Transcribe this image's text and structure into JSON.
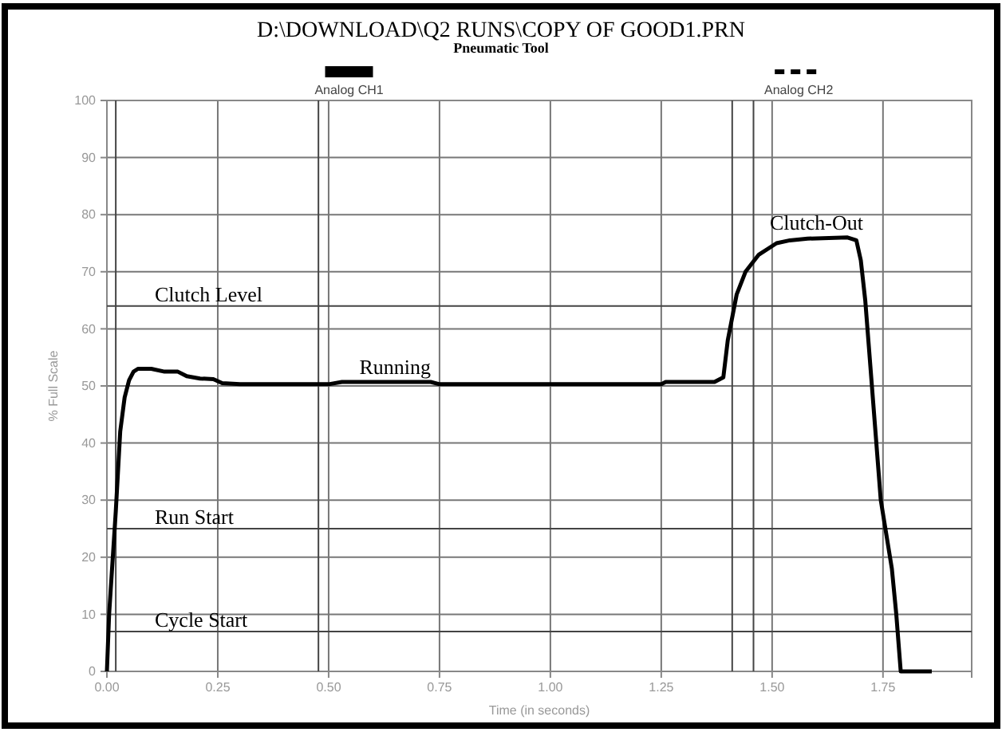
{
  "chart_data": {
    "type": "line",
    "title": "D:\\DOWNLOAD\\Q2 RUNS\\COPY OF GOOD1.PRN",
    "subtitle": "Pneumatic Tool",
    "xlabel": "Time (in seconds)",
    "ylabel": "% Full Scale",
    "xlim": [
      0,
      1.95
    ],
    "ylim": [
      0,
      100
    ],
    "xticks": [
      {
        "value": 0,
        "label": "0.00"
      },
      {
        "value": 0.25,
        "label": "0.25"
      },
      {
        "value": 0.5,
        "label": "0.50"
      },
      {
        "value": 0.75,
        "label": "0.75"
      },
      {
        "value": 1,
        "label": "1.00"
      },
      {
        "value": 1.25,
        "label": "1.25"
      },
      {
        "value": 1.5,
        "label": "1.50"
      },
      {
        "value": 1.75,
        "label": "1.75"
      }
    ],
    "yticks": [
      0,
      10,
      20,
      30,
      40,
      50,
      60,
      70,
      80,
      90,
      100
    ],
    "grid": true,
    "legend": "top",
    "marker": "none",
    "series": [
      {
        "name": "Analog CH1",
        "color": "#000000",
        "line_style": "solid",
        "x": [
          0,
          0.005,
          0.02,
          0.03,
          0.04,
          0.05,
          0.06,
          0.07,
          0.1,
          0.13,
          0.16,
          0.18,
          0.21,
          0.24,
          0.26,
          0.3,
          0.5,
          0.53,
          0.73,
          0.75,
          1.25,
          1.26,
          1.37,
          1.39,
          1.4,
          1.42,
          1.44,
          1.47,
          1.51,
          1.54,
          1.58,
          1.67,
          1.69,
          1.7,
          1.71,
          1.745,
          1.77,
          1.78,
          1.79,
          1.86
        ],
        "values": [
          0,
          10,
          28,
          42,
          48,
          51,
          52.5,
          53,
          53,
          52.5,
          52.5,
          51.7,
          51.3,
          51.2,
          50.5,
          50.3,
          50.3,
          50.7,
          50.7,
          50.3,
          50.3,
          50.7,
          50.7,
          51.5,
          58,
          66,
          70,
          73,
          75,
          75.5,
          75.8,
          76,
          75.5,
          72,
          65,
          30,
          18,
          10,
          0,
          0
        ]
      },
      {
        "name": "Analog CH2",
        "color": "#000000",
        "line_style": "dashed"
      }
    ],
    "ref_lines": [
      {
        "axis": "y",
        "value": 64,
        "label": "Clutch Level"
      },
      {
        "axis": "y",
        "value": 25,
        "label": "Run Start"
      },
      {
        "axis": "y",
        "value": 7,
        "label": "Cycle Start"
      },
      {
        "axis": "x",
        "value": 0.02,
        "label": null
      },
      {
        "axis": "x",
        "value": 0.477,
        "label": null
      },
      {
        "axis": "x",
        "value": 1.41,
        "label": null
      },
      {
        "axis": "x",
        "value": 1.458,
        "label": null
      }
    ],
    "annotations": [
      {
        "text": "Running",
        "x": 0.65,
        "y": 50.7
      },
      {
        "text": "Clutch-Out",
        "x": 1.6,
        "y": 76
      }
    ]
  }
}
